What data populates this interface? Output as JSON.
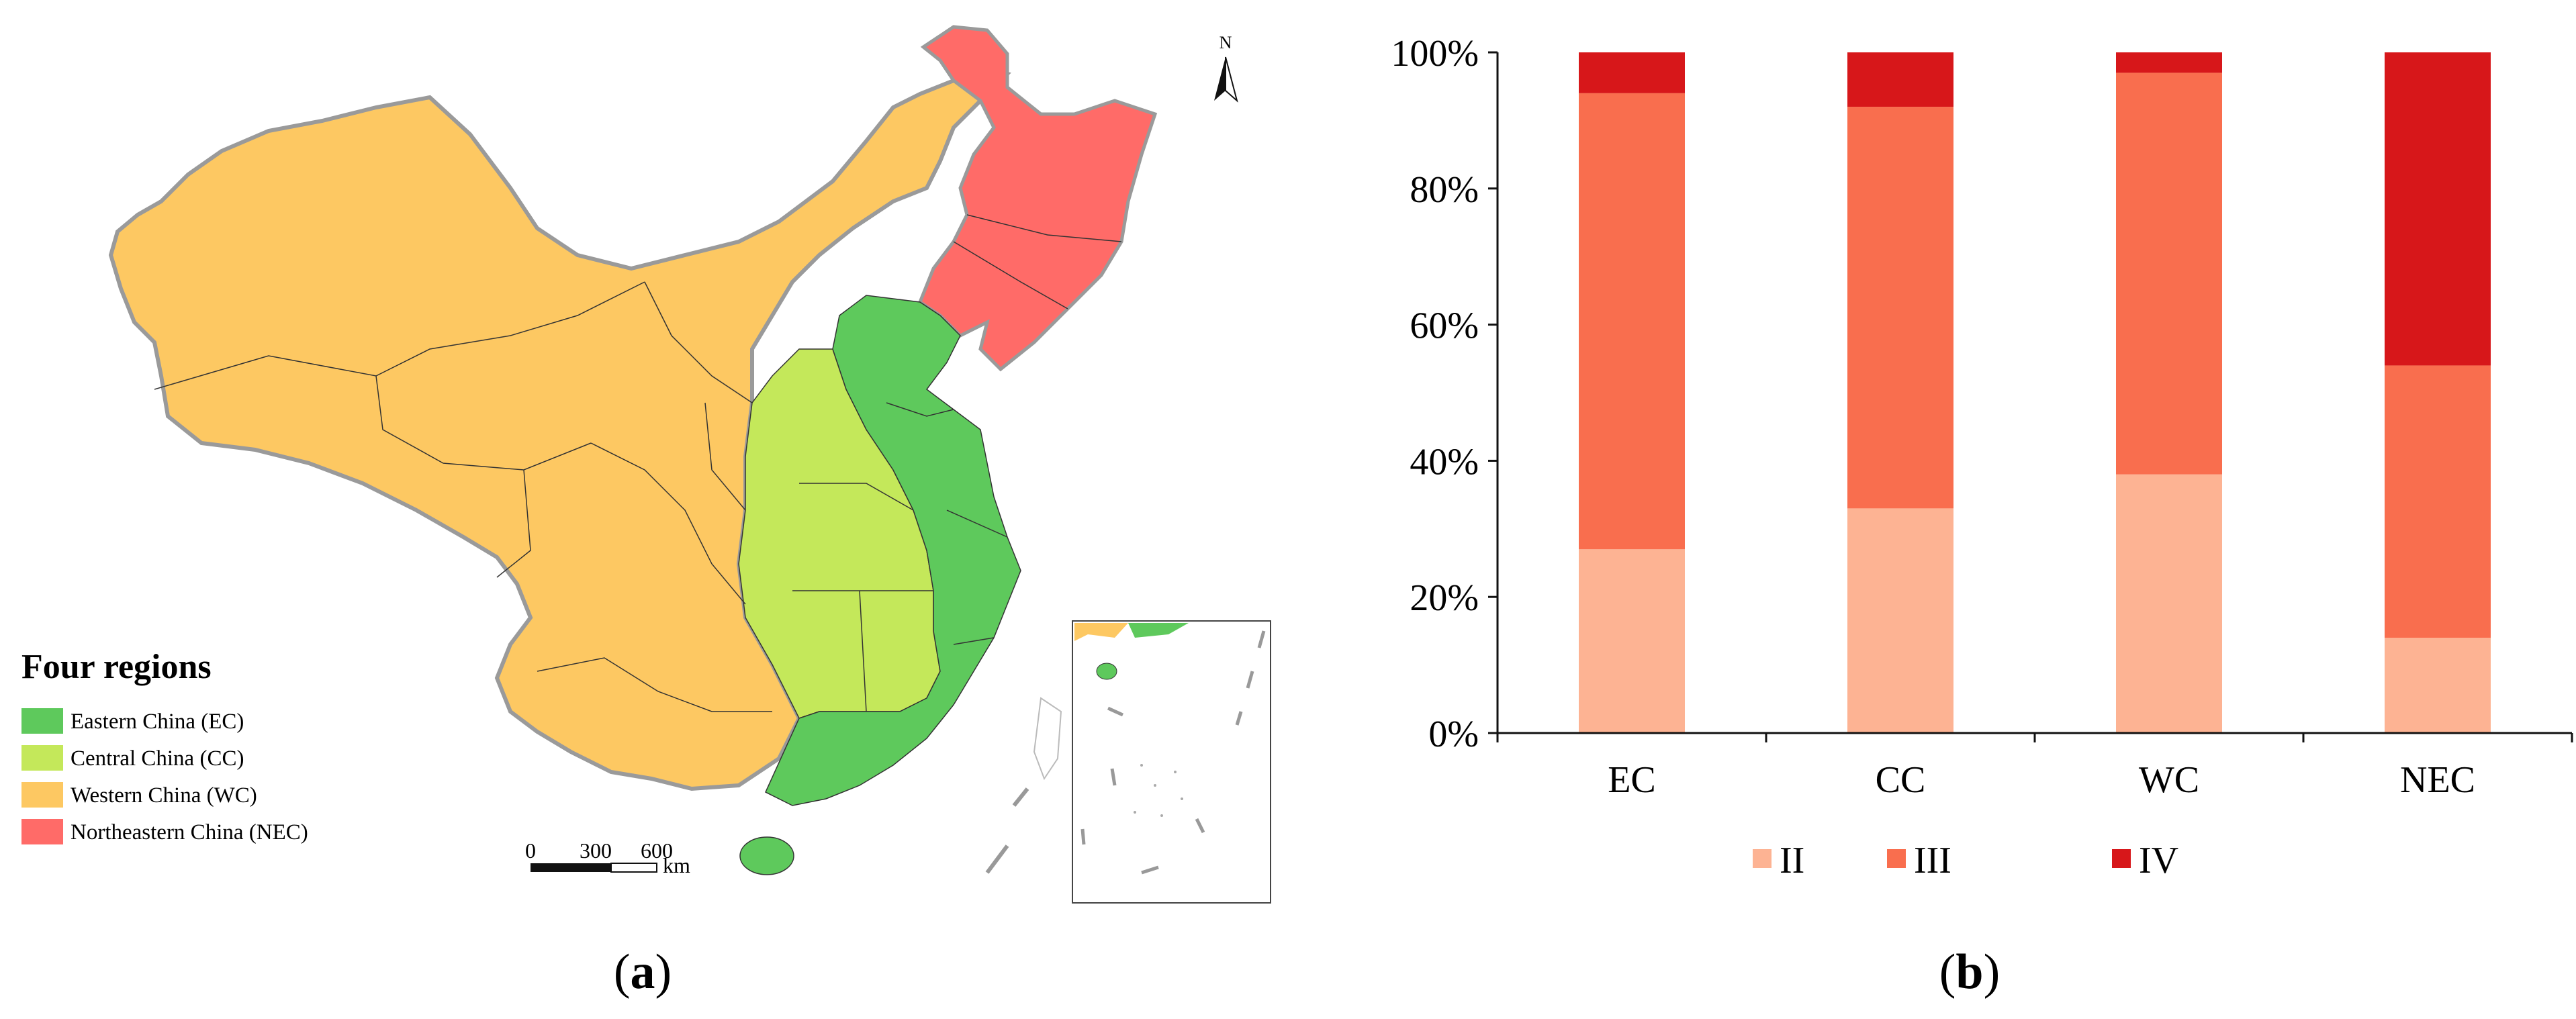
{
  "map": {
    "legend_title": "Four regions",
    "legend": [
      {
        "label": "Eastern China (EC)",
        "color": "#5ec95c"
      },
      {
        "label": "Central China (CC)",
        "color": "#c4e85a"
      },
      {
        "label": "Western China (WC)",
        "color": "#fdc862"
      },
      {
        "label": "Northeastern China (NEC)",
        "color": "#ff6b68"
      }
    ],
    "north_label": "N",
    "scale": {
      "ticks": [
        "0",
        "300",
        "600"
      ],
      "unit": "km"
    },
    "panel_label_open": "(",
    "panel_letter": "a",
    "panel_label_close": ")"
  },
  "chart_data": {
    "type": "bar",
    "stacked": true,
    "categories": [
      "EC",
      "CC",
      "WC",
      "NEC"
    ],
    "series": [
      {
        "name": "II",
        "color": "#fdb393",
        "values": [
          27,
          33,
          38,
          14
        ]
      },
      {
        "name": "III",
        "color": "#f96e4e",
        "values": [
          67,
          59,
          59,
          40
        ]
      },
      {
        "name": "IV",
        "color": "#d7171a",
        "values": [
          6,
          8,
          3,
          46
        ]
      }
    ],
    "ylim": [
      0,
      100
    ],
    "yticks": [
      "0%",
      "20%",
      "40%",
      "60%",
      "80%",
      "100%"
    ],
    "legend_position": "bottom",
    "grid": false,
    "panel_label_open": "(",
    "panel_letter": "b",
    "panel_label_close": ")"
  }
}
